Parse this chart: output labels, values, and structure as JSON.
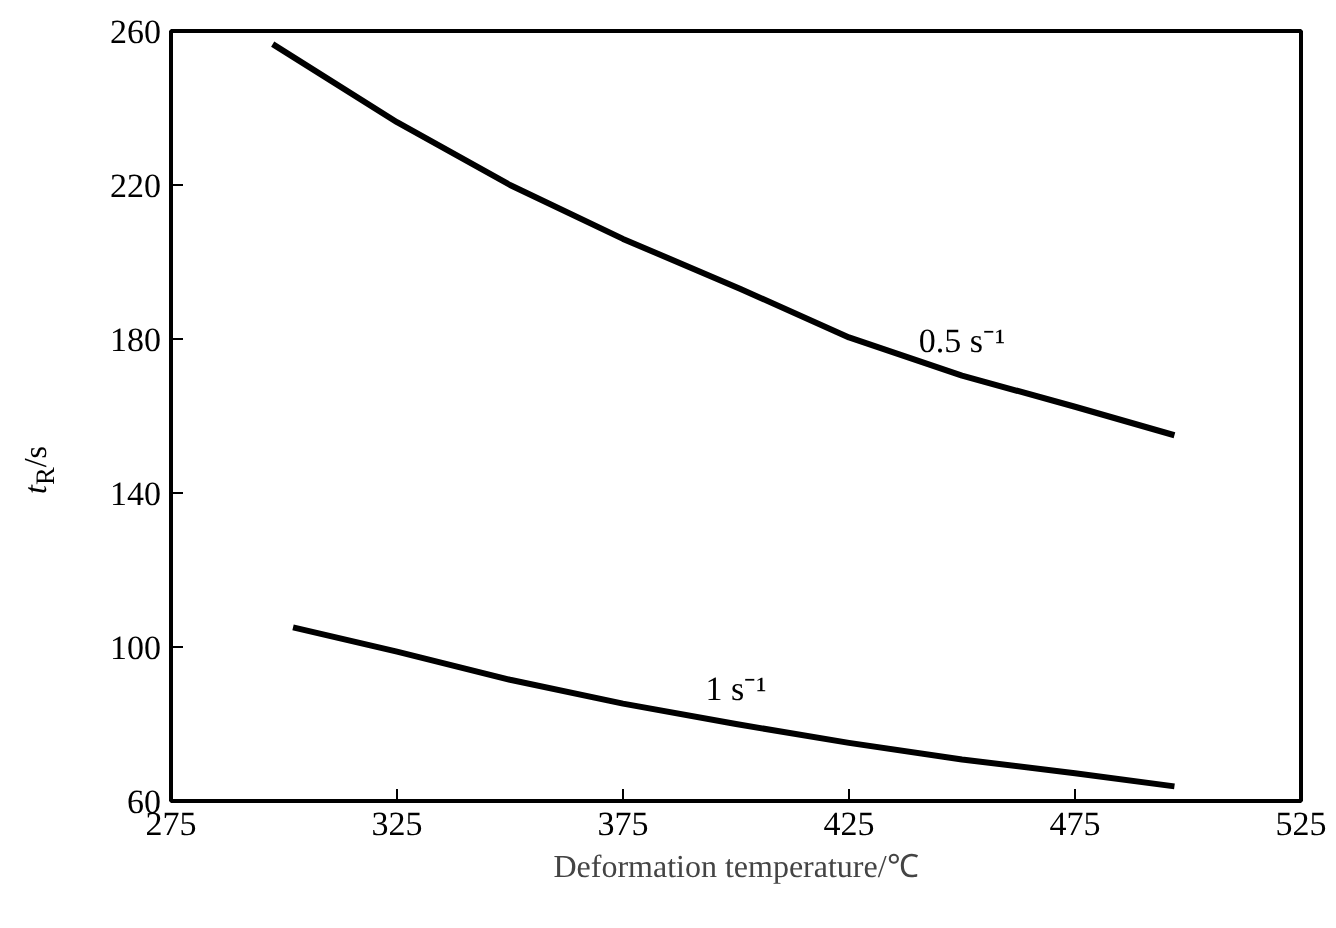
{
  "chart_data": {
    "type": "line",
    "xlabel": "Deformation temperature/℃",
    "ylabel": "t$_{R}$/s",
    "xlim": [
      275,
      525
    ],
    "xticks": [
      275,
      325,
      375,
      425,
      475,
      525
    ],
    "ylim": [
      60,
      260
    ],
    "yticks": [
      60,
      100,
      140,
      180,
      220,
      260
    ],
    "grid": false,
    "series": [
      {
        "name": "0.5 s⁻¹",
        "color": "#000000",
        "x": [
          297.5,
          325,
          350,
          375,
          401,
          425,
          450,
          475,
          497
        ],
        "values": [
          256.6,
          236.3,
          220,
          206,
          193,
          180.4,
          170.5,
          162.4,
          155
        ]
      },
      {
        "name": "1 s⁻¹",
        "color": "#000000",
        "x": [
          302,
          325,
          350,
          375,
          400,
          425,
          450,
          475,
          497
        ],
        "values": [
          105.1,
          98.8,
          91.5,
          85.3,
          80,
          75.1,
          70.8,
          67.2,
          63.8
        ]
      }
    ]
  }
}
